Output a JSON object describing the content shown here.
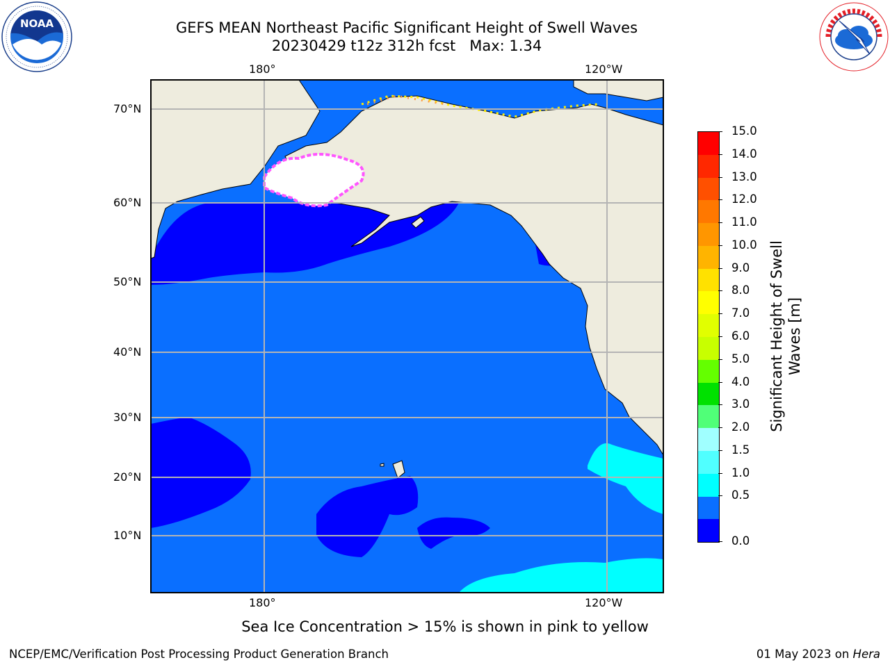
{
  "title": {
    "line1": "GEFS MEAN Northeast Pacific Significant Height of Swell Waves",
    "line2": "20230429 t12z 312h fcst",
    "max_label": "Max: 1.34"
  },
  "logos": {
    "left": {
      "name": "noaa-logo",
      "text": "NOAA"
    },
    "right": {
      "name": "nws-logo",
      "text": "NATIONAL WEATHER SERVICE"
    }
  },
  "map": {
    "top_lon_labels": [
      "180°",
      "120°W"
    ],
    "bottom_lon_labels": [
      "180°",
      "120°W"
    ],
    "lat_labels": [
      "70°N",
      "60°N",
      "50°N",
      "40°N",
      "30°N",
      "20°N",
      "10°N"
    ],
    "colors": {
      "land": "#eeecde",
      "ocean_1": "#0a6fff",
      "ocean_0": "#0000ff",
      "ocean_15": "#00ffff",
      "grid": "#b4b4b4",
      "ice_pink": "#ff55ff",
      "ice_yellow": "#ffee00"
    }
  },
  "colorbar": {
    "label_line1": "Significant Height of Swell",
    "label_line2": "Waves [m]",
    "ticks": [
      "15.0",
      "14.0",
      "13.0",
      "12.0",
      "11.0",
      "10.0",
      "9.0",
      "8.0",
      "7.0",
      "6.0",
      "5.0",
      "4.0",
      "3.0",
      "2.0",
      "1.5",
      "1.0",
      "0.5",
      "0.0"
    ],
    "colors_top_to_bottom": [
      "#ff0000",
      "#ff2800",
      "#ff5000",
      "#ff7800",
      "#ff9600",
      "#ffb400",
      "#ffe100",
      "#ffff00",
      "#e1ff00",
      "#c8ff00",
      "#64ff00",
      "#00e100",
      "#50ff78",
      "#a0ffff",
      "#50ffff",
      "#00ffff",
      "#0a6fff",
      "#0000ff"
    ]
  },
  "footer": {
    "note": "Sea Ice Concentration > 15% is shown in pink to yellow",
    "left": "NCEP/EMC/Verification Post Processing Product Generation Branch",
    "right_date": "01 May 2023 on ",
    "right_host": "Hera"
  }
}
